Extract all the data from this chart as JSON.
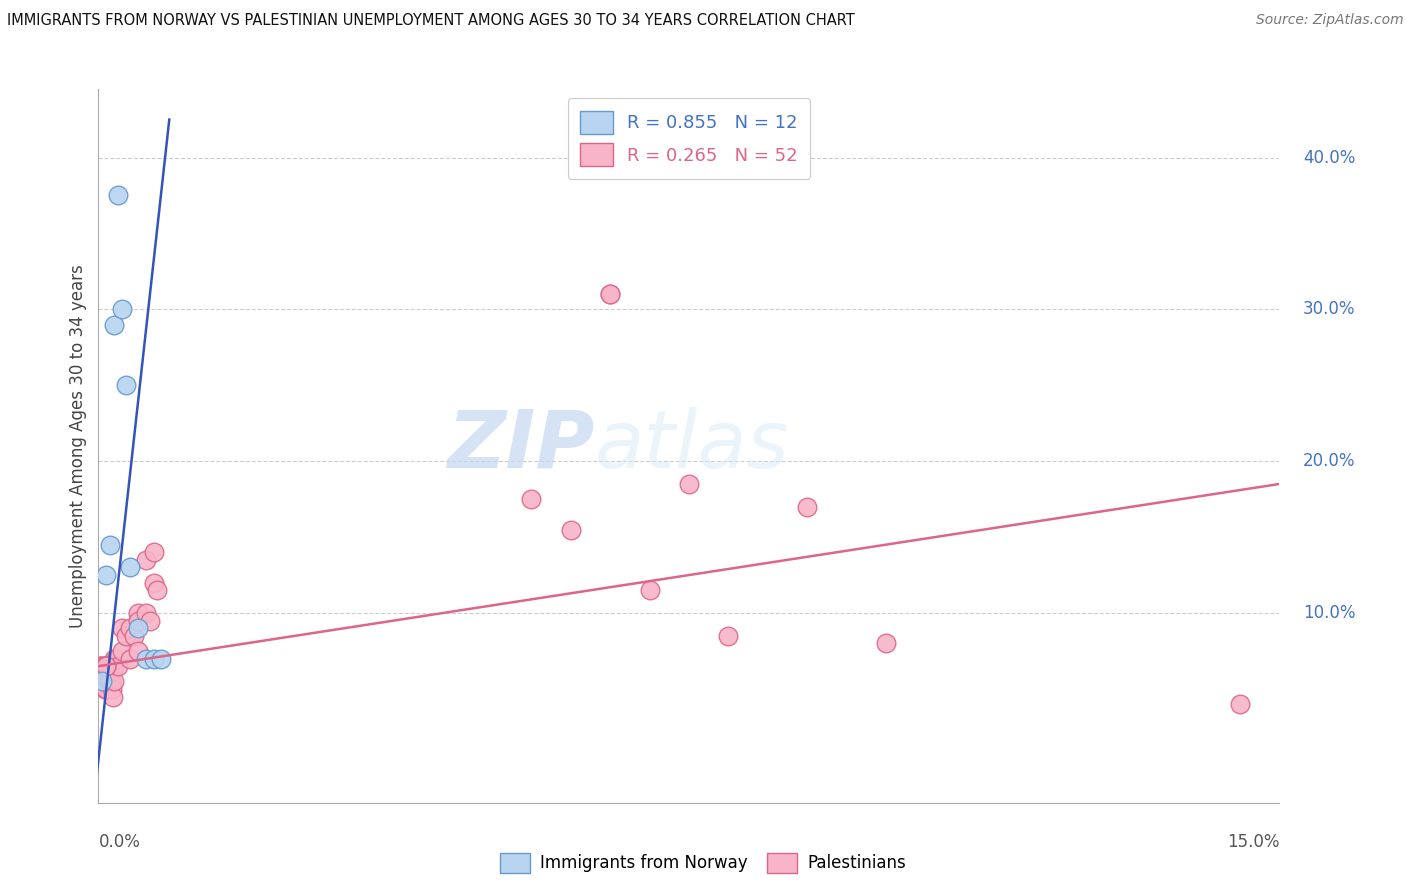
{
  "title": "IMMIGRANTS FROM NORWAY VS PALESTINIAN UNEMPLOYMENT AMONG AGES 30 TO 34 YEARS CORRELATION CHART",
  "source": "Source: ZipAtlas.com",
  "ylabel": "Unemployment Among Ages 30 to 34 years",
  "ytick_labels": [
    "40.0%",
    "30.0%",
    "20.0%",
    "10.0%"
  ],
  "ytick_values": [
    0.4,
    0.3,
    0.2,
    0.1
  ],
  "xlim": [
    0.0,
    0.15
  ],
  "ylim": [
    -0.025,
    0.445
  ],
  "norway_color": "#b8d4f0",
  "norway_edge": "#6699cc",
  "palestine_color": "#f8b4c8",
  "palestine_edge": "#dd6688",
  "trendline_norway_color": "#3355bb",
  "trendline_palestine_color": "#dd6688",
  "watermark_zip": "ZIP",
  "watermark_atlas": "atlas",
  "norway_x": [
    0.0005,
    0.001,
    0.0015,
    0.002,
    0.0025,
    0.003,
    0.0035,
    0.004,
    0.005,
    0.006,
    0.007,
    0.008
  ],
  "norway_y": [
    0.055,
    0.125,
    0.145,
    0.29,
    0.375,
    0.3,
    0.25,
    0.13,
    0.09,
    0.07,
    0.07,
    0.07
  ],
  "norway_trendline_x": [
    -0.0005,
    0.009
  ],
  "norway_trendline_y": [
    -0.02,
    0.425
  ],
  "palestine_trendline_x": [
    0.0,
    0.15
  ],
  "palestine_trendline_y": [
    0.065,
    0.185
  ],
  "palestine_x": [
    0.0002,
    0.0003,
    0.0004,
    0.0005,
    0.0006,
    0.0007,
    0.0008,
    0.0009,
    0.001,
    0.001,
    0.001,
    0.001,
    0.0012,
    0.0013,
    0.0014,
    0.0015,
    0.0016,
    0.0017,
    0.0018,
    0.002,
    0.002,
    0.002,
    0.0022,
    0.0025,
    0.003,
    0.003,
    0.0035,
    0.004,
    0.004,
    0.0045,
    0.005,
    0.005,
    0.005,
    0.006,
    0.006,
    0.0065,
    0.007,
    0.007,
    0.0075,
    0.0008,
    0.0009,
    0.001,
    0.055,
    0.06,
    0.065,
    0.065,
    0.07,
    0.075,
    0.08,
    0.09,
    0.1,
    0.145
  ],
  "palestine_y": [
    0.065,
    0.065,
    0.065,
    0.06,
    0.055,
    0.055,
    0.05,
    0.05,
    0.065,
    0.065,
    0.06,
    0.05,
    0.065,
    0.06,
    0.055,
    0.065,
    0.055,
    0.05,
    0.045,
    0.07,
    0.065,
    0.055,
    0.07,
    0.065,
    0.09,
    0.075,
    0.085,
    0.09,
    0.07,
    0.085,
    0.1,
    0.095,
    0.075,
    0.135,
    0.1,
    0.095,
    0.14,
    0.12,
    0.115,
    0.065,
    0.065,
    0.065,
    0.175,
    0.155,
    0.31,
    0.31,
    0.115,
    0.185,
    0.085,
    0.17,
    0.08,
    0.04
  ]
}
